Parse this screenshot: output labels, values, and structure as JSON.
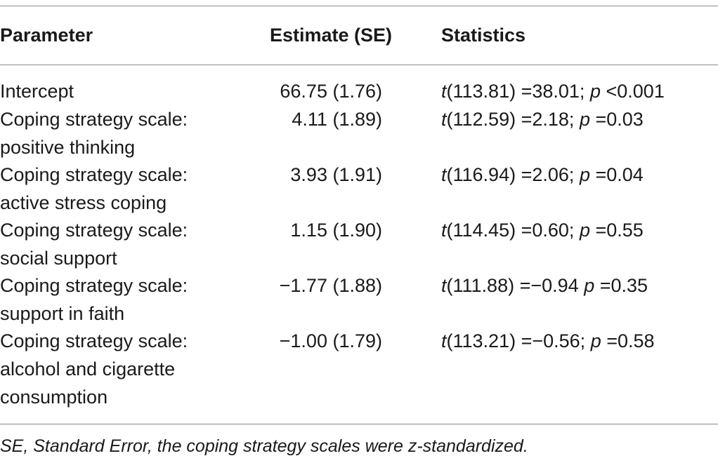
{
  "table": {
    "headers": {
      "parameter": "Parameter",
      "estimate": "Estimate (SE)",
      "statistics": "Statistics"
    },
    "rows": [
      {
        "parameter_line1": "Intercept",
        "parameter_line2": "",
        "parameter_line3": "",
        "estimate": "66.75 (1.76)",
        "t_symbol": "t",
        "t_df": "(113.81)",
        "t_value": "=38.01;",
        "p_symbol": "p",
        "p_value": "<0.001"
      },
      {
        "parameter_line1": "Coping strategy scale:",
        "parameter_line2": "positive thinking",
        "parameter_line3": "",
        "estimate": "4.11 (1.89)",
        "t_symbol": "t",
        "t_df": "(112.59)",
        "t_value": "=2.18;",
        "p_symbol": "p",
        "p_value": "=0.03"
      },
      {
        "parameter_line1": "Coping strategy scale:",
        "parameter_line2": "active stress coping",
        "parameter_line3": "",
        "estimate": "3.93 (1.91)",
        "t_symbol": "t",
        "t_df": "(116.94)",
        "t_value": "=2.06;",
        "p_symbol": "p",
        "p_value": "=0.04"
      },
      {
        "parameter_line1": "Coping strategy scale:",
        "parameter_line2": "social support",
        "parameter_line3": "",
        "estimate": "1.15 (1.90)",
        "t_symbol": "t",
        "t_df": "(114.45)",
        "t_value": "=0.60;",
        "p_symbol": "p",
        "p_value": "=0.55"
      },
      {
        "parameter_line1": "Coping strategy scale:",
        "parameter_line2": "support in faith",
        "parameter_line3": "",
        "estimate": "−1.77 (1.88)",
        "t_symbol": "t",
        "t_df": "(111.88)",
        "t_value": "=−0.94",
        "p_symbol": "p",
        "p_value": "=0.35"
      },
      {
        "parameter_line1": "Coping strategy scale:",
        "parameter_line2": "alcohol and cigarette",
        "parameter_line3": "consumption",
        "estimate": "−1.00 (1.79)",
        "t_symbol": "t",
        "t_df": "(113.21)",
        "t_value": "=−0.56;",
        "p_symbol": "p",
        "p_value": "=0.58"
      }
    ],
    "footnote": "SE, Standard Error, the coping strategy scales were z-standardized."
  }
}
